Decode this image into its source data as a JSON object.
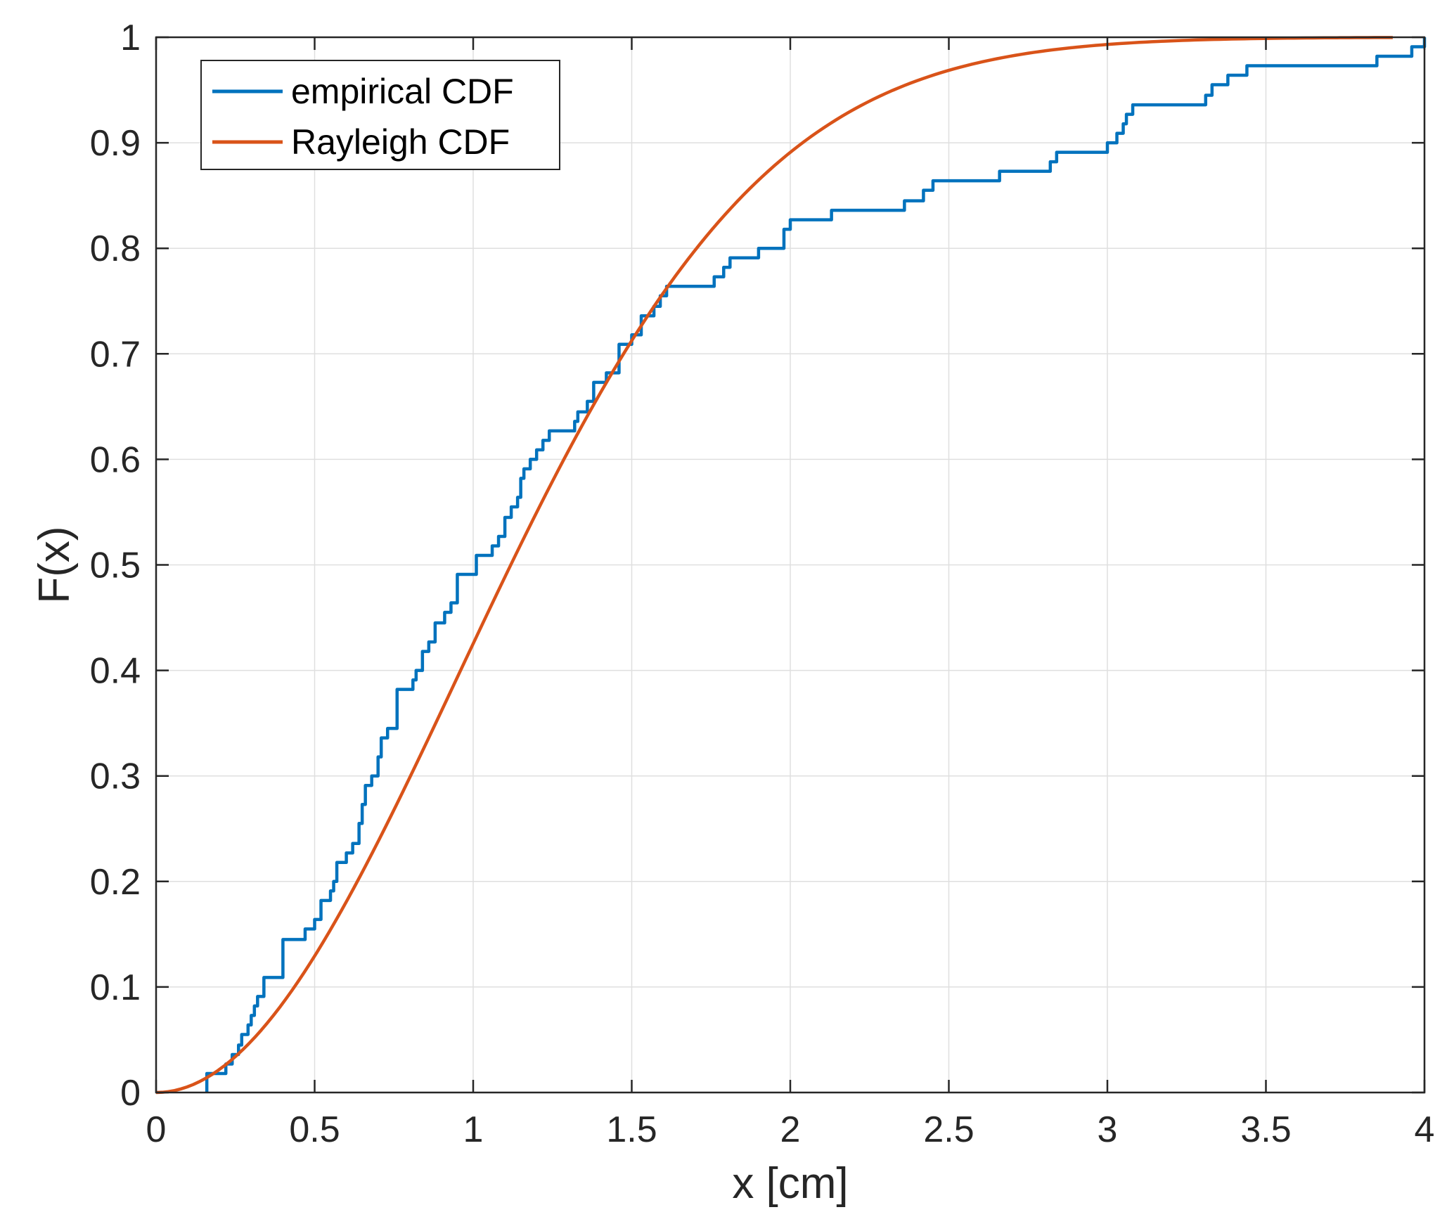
{
  "chart_data": {
    "type": "line",
    "title": "",
    "xlabel": "x [cm]",
    "ylabel": "F(x)",
    "xlim": [
      0,
      4
    ],
    "ylim": [
      0,
      1
    ],
    "grid": true,
    "legend_position": "top-left",
    "xticks": [
      0,
      0.5,
      1,
      1.5,
      2,
      2.5,
      3,
      3.5,
      4
    ],
    "xtick_labels": [
      "0",
      "0.5",
      "1",
      "1.5",
      "2",
      "2.5",
      "3",
      "3.5",
      "4"
    ],
    "yticks": [
      0,
      0.1,
      0.2,
      0.3,
      0.4,
      0.5,
      0.6,
      0.7,
      0.8,
      0.9,
      1
    ],
    "ytick_labels": [
      "0",
      "0.1",
      "0.2",
      "0.3",
      "0.4",
      "0.5",
      "0.6",
      "0.7",
      "0.8",
      "0.9",
      "1"
    ],
    "series": [
      {
        "name": "empirical CDF",
        "color": "#0072BD",
        "style": "stairs",
        "x": [
          0.16,
          0.22,
          0.24,
          0.26,
          0.27,
          0.29,
          0.3,
          0.31,
          0.32,
          0.34,
          0.4,
          0.47,
          0.5,
          0.52,
          0.55,
          0.56,
          0.57,
          0.6,
          0.62,
          0.64,
          0.65,
          0.66,
          0.68,
          0.7,
          0.71,
          0.73,
          0.76,
          0.81,
          0.82,
          0.84,
          0.86,
          0.88,
          0.91,
          0.93,
          0.95,
          1.01,
          1.06,
          1.08,
          1.1,
          1.12,
          1.14,
          1.15,
          1.16,
          1.18,
          1.2,
          1.22,
          1.24,
          1.32,
          1.33,
          1.36,
          1.38,
          1.42,
          1.46,
          1.5,
          1.53,
          1.57,
          1.59,
          1.61,
          1.64,
          1.76,
          1.79,
          1.81,
          1.9,
          1.98,
          2.0,
          2.13,
          2.36,
          2.42,
          2.45,
          2.66,
          2.82,
          2.84,
          3.0,
          3.03,
          3.05,
          3.06,
          3.08,
          3.31,
          3.33,
          3.38,
          3.44,
          3.85,
          3.96
        ],
        "values": [
          0.018,
          0.027,
          0.036,
          0.045,
          0.055,
          0.064,
          0.073,
          0.082,
          0.091,
          0.109,
          0.145,
          0.155,
          0.164,
          0.182,
          0.191,
          0.2,
          0.218,
          0.227,
          0.236,
          0.255,
          0.273,
          0.291,
          0.3,
          0.318,
          0.336,
          0.345,
          0.382,
          0.391,
          0.4,
          0.418,
          0.427,
          0.445,
          0.455,
          0.464,
          0.491,
          0.509,
          0.518,
          0.527,
          0.545,
          0.555,
          0.564,
          0.582,
          0.591,
          0.6,
          0.609,
          0.618,
          0.627,
          0.636,
          0.645,
          0.655,
          0.673,
          0.682,
          0.709,
          0.718,
          0.736,
          0.745,
          0.755,
          0.764,
          0.764,
          0.773,
          0.782,
          0.791,
          0.8,
          0.818,
          0.827,
          0.836,
          0.845,
          0.855,
          0.864,
          0.873,
          0.882,
          0.891,
          0.9,
          0.909,
          0.918,
          0.927,
          0.936,
          0.945,
          0.955,
          0.964,
          0.973,
          0.982,
          0.991
        ],
        "x_start": 0.16,
        "x_end": 4.0,
        "final_value": 1.0
      },
      {
        "name": "Rayleigh CDF",
        "color": "#D95319",
        "style": "line",
        "sigma": 0.95,
        "x": [
          0,
          0.1,
          0.2,
          0.3,
          0.4,
          0.5,
          0.6,
          0.7,
          0.8,
          0.9,
          1.0,
          1.1,
          1.2,
          1.3,
          1.4,
          1.5,
          1.6,
          1.7,
          1.8,
          1.9,
          2.0,
          2.1,
          2.2,
          2.3,
          2.4,
          2.5,
          2.6,
          2.7,
          2.8,
          2.9,
          3.0,
          3.2,
          3.4,
          3.6,
          3.8,
          3.9
        ],
        "values": [
          0.0,
          0.006,
          0.022,
          0.049,
          0.085,
          0.129,
          0.181,
          0.238,
          0.299,
          0.362,
          0.426,
          0.488,
          0.549,
          0.608,
          0.663,
          0.712,
          0.758,
          0.799,
          0.834,
          0.865,
          0.891,
          0.913,
          0.931,
          0.946,
          0.959,
          0.968,
          0.976,
          0.982,
          0.987,
          0.99,
          0.993,
          0.997,
          0.998,
          0.999,
          1.0,
          1.0
        ]
      }
    ]
  }
}
